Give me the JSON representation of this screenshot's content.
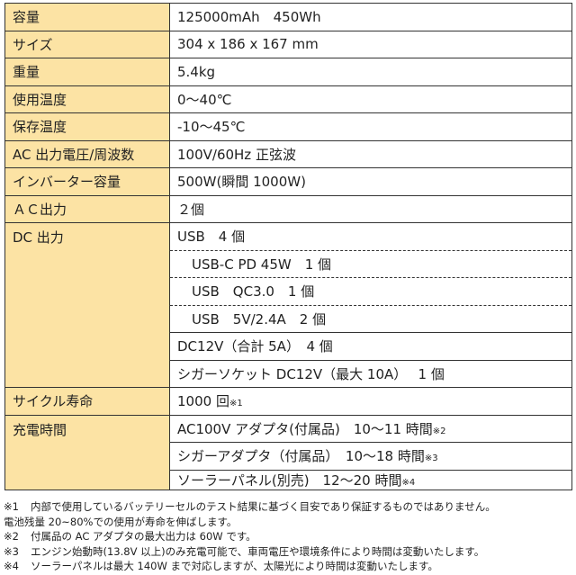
{
  "rows": [
    {
      "label": "容量",
      "value": "125000mAh　450Wh"
    },
    {
      "label": "サイズ",
      "value": "304 x 186 x 167 mm"
    },
    {
      "label": "重量",
      "value": "5.4kg"
    },
    {
      "label": "使用温度",
      "value": "0～40℃"
    },
    {
      "label": "保存温度",
      "value": "-10～45℃"
    },
    {
      "label": "AC 出力電圧/周波数",
      "value": "100V/60Hz 正弦波"
    },
    {
      "label": "インバーター容量",
      "value": "500W(瞬間 1000W)"
    },
    {
      "label": "ＡＣ出力",
      "value": "２個"
    }
  ],
  "dc": {
    "label": "DC 出力",
    "items": [
      "USB　4 個",
      "USB-C PD 45W　1 個",
      "USB　QC3.0　1 個",
      "USB　5V/2.4A　2 個",
      "DC12V（合計 5A）　4 個",
      "シガーソケット DC12V（最大 10A）　 1 個"
    ]
  },
  "cycle": {
    "label": "サイクル寿命",
    "value": "1000 回",
    "note": "※1"
  },
  "charge": {
    "label": "充電時間",
    "items": [
      {
        "value": "AC100V アダプタ(付属品)　10～11 時間",
        "note": "※2"
      },
      {
        "value": "シガーアダプタ（付属品）　10～18 時間",
        "note": "※3"
      },
      {
        "value": "ソーラーパネル(別売)　12～20 時間",
        "note": "※4"
      }
    ]
  },
  "notes": [
    {
      "mark": "※1",
      "text": "内部で使用しているバッテリーセルのテスト結果に基づく目安であり保証するものではありません。",
      "cont": "電池残量 20~80%での使用が寿命を伸ばします。"
    },
    {
      "mark": "※2",
      "text": "付属品の AC アダプタの最大出力は 60W です。"
    },
    {
      "mark": "※3",
      "text": "エンジン始動時(13.8V 以上)のみ充電可能で、車両電圧や環境条件により時間は変動いたします。"
    },
    {
      "mark": "※4",
      "text": "ソーラーパネルは最大 140W まで対応しますが、太陽光により時間は変動いたします。"
    }
  ],
  "colors": {
    "label_bg": "#fce3a4",
    "border": "#333333"
  }
}
